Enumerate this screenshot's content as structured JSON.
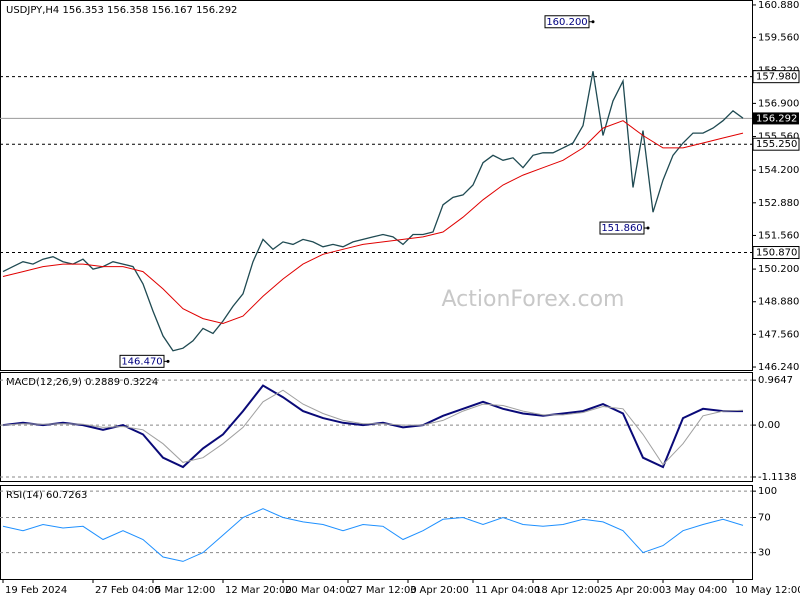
{
  "chart_data": [
    {
      "type": "line",
      "panel": "main",
      "title": "USDJPY,H4  156.353 156.358 156.167 156.292",
      "ylim": [
        146.12,
        161.08
      ],
      "xlim": [
        -0.3,
        74.9
      ],
      "yticks": [
        {
          "value": 160.88,
          "label": "160.880"
        },
        {
          "value": 159.56,
          "label": "159.560"
        },
        {
          "value": 158.22,
          "label": "158.220"
        },
        {
          "value": 156.9,
          "label": "156.900"
        },
        {
          "value": 155.56,
          "label": "155.560"
        },
        {
          "value": 154.2,
          "label": "154.200"
        },
        {
          "value": 152.88,
          "label": "152.880"
        },
        {
          "value": 151.56,
          "label": "151.560"
        },
        {
          "value": 150.2,
          "label": "150.200"
        },
        {
          "value": 148.88,
          "label": "148.880"
        },
        {
          "value": 147.56,
          "label": "147.560"
        },
        {
          "value": 146.24,
          "label": "146.240"
        }
      ],
      "xticks": [
        {
          "value": 0,
          "label": "19 Feb 2024"
        },
        {
          "value": 9,
          "label": "27 Feb 04:00"
        },
        {
          "value": 15,
          "label": "5 Mar 12:00"
        },
        {
          "value": 22,
          "label": "12 Mar 20:00"
        },
        {
          "value": 28,
          "label": "20 Mar 04:00"
        },
        {
          "value": 34.5,
          "label": "27 Mar 12:00"
        },
        {
          "value": 40.5,
          "label": "3 Apr 20:00"
        },
        {
          "value": 47,
          "label": "11 Apr 04:00"
        },
        {
          "value": 53,
          "label": "18 Apr 12:00"
        },
        {
          "value": 59.5,
          "label": "25 Apr 20:00"
        },
        {
          "value": 66,
          "label": "3 May 04:00"
        },
        {
          "value": 73,
          "label": "10 May 12:00"
        }
      ],
      "levels": [
        {
          "value": 157.98,
          "label": "157.980"
        },
        {
          "value": 155.25,
          "label": "155.250"
        },
        {
          "value": 150.87,
          "label": "150.870"
        }
      ],
      "current": {
        "value": 156.292,
        "label": "156.292"
      },
      "annotations": [
        {
          "x": 59,
          "value": 160.2,
          "text": "160.200"
        },
        {
          "x": 64.5,
          "value": 151.86,
          "text": "151.860"
        },
        {
          "x": 16.5,
          "value": 146.47,
          "text": "146.470"
        }
      ],
      "watermark": "ActionForex.com",
      "series": [
        {
          "color": "#1f4a52",
          "width": 1.3,
          "x": [
            0,
            1,
            2,
            3,
            4,
            5,
            6,
            7,
            8,
            9,
            10,
            11,
            12,
            13,
            14,
            15,
            16,
            17,
            18,
            19,
            20,
            21,
            22,
            23,
            24,
            25,
            26,
            27,
            28,
            29,
            30,
            31,
            32,
            33,
            34,
            35,
            36,
            37,
            38,
            39,
            40,
            41,
            42,
            43,
            44,
            45,
            46,
            47,
            48,
            49,
            50,
            51,
            52,
            53,
            54,
            55,
            56,
            57,
            58,
            59,
            60,
            61,
            62,
            63,
            64,
            65,
            66,
            67,
            68,
            69,
            70,
            71,
            72,
            73,
            74
          ],
          "values": [
            150.1,
            150.3,
            150.5,
            150.4,
            150.6,
            150.7,
            150.5,
            150.4,
            150.6,
            150.2,
            150.3,
            150.5,
            150.4,
            150.3,
            149.6,
            148.5,
            147.5,
            146.9,
            147.0,
            147.3,
            147.8,
            147.6,
            148.1,
            148.7,
            149.2,
            150.5,
            151.4,
            151.0,
            151.3,
            151.2,
            151.4,
            151.3,
            151.1,
            151.2,
            151.1,
            151.3,
            151.4,
            151.5,
            151.6,
            151.5,
            151.2,
            151.6,
            151.6,
            151.7,
            152.8,
            153.1,
            153.2,
            153.6,
            154.5,
            154.8,
            154.6,
            154.7,
            154.3,
            154.8,
            154.9,
            154.9,
            155.1,
            155.3,
            156.0,
            158.2,
            155.6,
            157.0,
            157.8,
            153.5,
            155.8,
            152.5,
            153.8,
            154.8,
            155.3,
            155.7,
            155.7,
            155.9,
            156.2,
            156.6,
            156.3
          ]
        },
        {
          "color": "#e00000",
          "width": 1,
          "x": [
            0,
            2,
            4,
            6,
            8,
            10,
            12,
            14,
            16,
            18,
            20,
            22,
            24,
            26,
            28,
            30,
            32,
            34,
            36,
            38,
            40,
            42,
            44,
            46,
            48,
            50,
            52,
            54,
            56,
            58,
            60,
            62,
            64,
            66,
            68,
            70,
            72,
            74
          ],
          "values": [
            149.9,
            150.1,
            150.3,
            150.4,
            150.4,
            150.3,
            150.3,
            150.1,
            149.4,
            148.6,
            148.2,
            148.0,
            148.3,
            149.1,
            149.8,
            150.4,
            150.8,
            151.0,
            151.2,
            151.3,
            151.4,
            151.5,
            151.7,
            152.3,
            153.0,
            153.6,
            154.0,
            154.3,
            154.6,
            155.1,
            155.9,
            156.2,
            155.6,
            155.1,
            155.1,
            155.3,
            155.5,
            155.7
          ]
        }
      ]
    },
    {
      "type": "line",
      "panel": "macd",
      "title": "MACD(12,26,9) 0.2889 0.3224",
      "ylim": [
        -1.2,
        1.14
      ],
      "xlim": [
        -0.3,
        74.9
      ],
      "yticks": [
        {
          "value": 0.9647,
          "label": "0.9647"
        },
        {
          "value": 0,
          "label": "0.00"
        },
        {
          "value": -1.1138,
          "label": "-1.1138"
        }
      ],
      "series": [
        {
          "color": "#0a0a78",
          "width": 2,
          "x": [
            0,
            2,
            4,
            6,
            8,
            10,
            12,
            14,
            16,
            18,
            20,
            22,
            24,
            26,
            28,
            30,
            32,
            34,
            36,
            38,
            40,
            42,
            44,
            46,
            48,
            50,
            52,
            54,
            56,
            58,
            60,
            62,
            64,
            66,
            68,
            70,
            72,
            74
          ],
          "values": [
            0.0,
            0.05,
            0.0,
            0.05,
            0.0,
            -0.1,
            0.0,
            -0.2,
            -0.7,
            -0.9,
            -0.5,
            -0.2,
            0.3,
            0.85,
            0.6,
            0.3,
            0.15,
            0.05,
            0.0,
            0.05,
            -0.05,
            0.0,
            0.2,
            0.35,
            0.5,
            0.35,
            0.25,
            0.2,
            0.25,
            0.3,
            0.45,
            0.25,
            -0.7,
            -0.9,
            0.15,
            0.35,
            0.3,
            0.3
          ]
        },
        {
          "color": "#a0a0a0",
          "width": 1,
          "x": [
            0,
            2,
            4,
            6,
            8,
            10,
            12,
            14,
            16,
            18,
            20,
            22,
            24,
            26,
            28,
            30,
            32,
            34,
            36,
            38,
            40,
            42,
            44,
            46,
            48,
            50,
            52,
            54,
            56,
            58,
            60,
            62,
            64,
            66,
            68,
            70,
            72,
            74
          ],
          "values": [
            0.0,
            0.03,
            0.02,
            0.03,
            0.02,
            -0.05,
            -0.03,
            -0.1,
            -0.4,
            -0.8,
            -0.7,
            -0.4,
            -0.05,
            0.5,
            0.75,
            0.45,
            0.25,
            0.1,
            0.03,
            0.03,
            0.0,
            0.0,
            0.1,
            0.3,
            0.45,
            0.42,
            0.3,
            0.22,
            0.22,
            0.27,
            0.4,
            0.35,
            -0.2,
            -0.85,
            -0.4,
            0.2,
            0.3,
            0.32
          ]
        }
      ]
    },
    {
      "type": "line",
      "panel": "rsi",
      "title": "RSI(14) 60.7263",
      "ylim": [
        0,
        107
      ],
      "xlim": [
        -0.3,
        74.9
      ],
      "yticks": [
        100,
        70,
        30
      ],
      "series": [
        {
          "color": "#1e90ff",
          "width": 1,
          "x": [
            0,
            2,
            4,
            6,
            8,
            10,
            12,
            14,
            16,
            18,
            20,
            22,
            24,
            26,
            28,
            30,
            32,
            34,
            36,
            38,
            40,
            42,
            44,
            46,
            48,
            50,
            52,
            54,
            56,
            58,
            60,
            62,
            64,
            66,
            68,
            70,
            72,
            74
          ],
          "values": [
            60,
            55,
            62,
            58,
            60,
            45,
            55,
            45,
            25,
            20,
            30,
            50,
            70,
            80,
            70,
            65,
            62,
            55,
            62,
            60,
            45,
            55,
            68,
            70,
            62,
            70,
            62,
            60,
            62,
            68,
            65,
            55,
            30,
            38,
            55,
            62,
            68,
            61
          ]
        }
      ]
    }
  ]
}
